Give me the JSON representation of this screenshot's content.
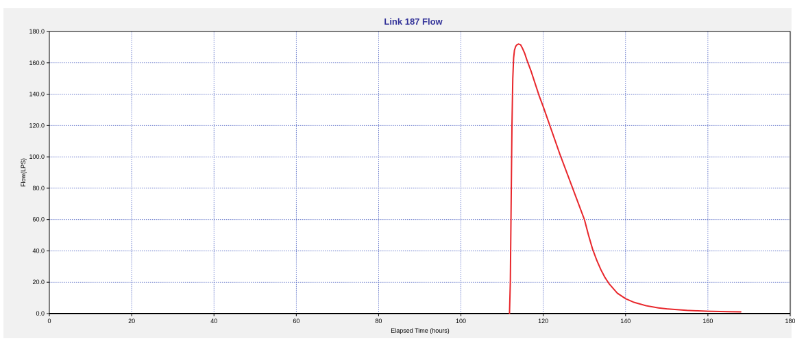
{
  "chart_data": {
    "type": "line",
    "title": "Link 187 Flow",
    "xlabel": "Elapsed Time (hours)",
    "ylabel": "Flow(LPS)",
    "xlim": [
      0,
      180
    ],
    "ylim": [
      0,
      180
    ],
    "x_ticks": [
      "0",
      "20",
      "40",
      "60",
      "80",
      "100",
      "120",
      "140",
      "160",
      "180"
    ],
    "y_ticks": [
      "0.0",
      "20.0",
      "40.0",
      "60.0",
      "80.0",
      "100.0",
      "120.0",
      "140.0",
      "160.0",
      "180.0"
    ],
    "grid": true,
    "legend": "none",
    "colors": {
      "title": "#333399",
      "series": "#e8262b",
      "grid": "#4a5fc1",
      "plot_background": "#ffffff",
      "frame_background": "#f1f1f1"
    },
    "series": [
      {
        "color": "#e8262b",
        "x": [
          111.8,
          112.0,
          112.2,
          112.4,
          112.6,
          112.8,
          113.0,
          113.3,
          113.6,
          114.0,
          114.5,
          115.0,
          115.5,
          116.0,
          117.0,
          118.0,
          119.0,
          120.0,
          122.0,
          124.0,
          126.0,
          128.0,
          130.0,
          131.0,
          132.0,
          133.0,
          134.0,
          135.0,
          136.0,
          137.0,
          138.0,
          140.0,
          142.0,
          145.0,
          148.0,
          150.0,
          155.0,
          160.0,
          165.0,
          168.0
        ],
        "y": [
          0,
          20,
          70,
          120,
          150,
          163,
          168,
          170.5,
          171.5,
          172,
          171.5,
          169,
          166,
          162,
          155,
          147,
          139,
          132,
          117,
          102,
          88,
          74,
          60,
          50,
          41,
          34,
          28,
          23,
          19,
          16,
          13,
          9.5,
          7.2,
          5,
          3.6,
          3,
          2,
          1.5,
          1.2,
          1.1
        ]
      }
    ]
  }
}
